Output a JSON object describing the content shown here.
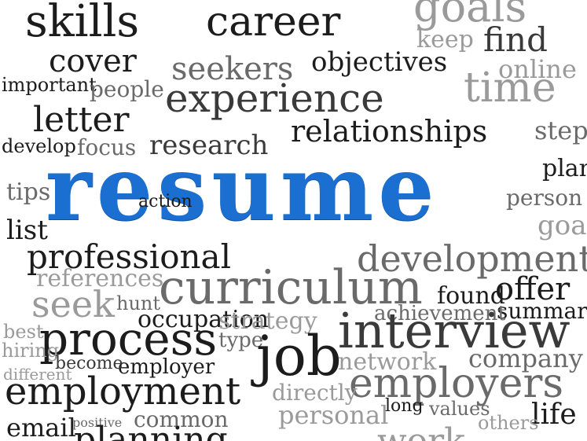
{
  "cloud": {
    "center_word": "resume",
    "center_color": "#1a6fd1",
    "words": [
      "skills",
      "career",
      "cover",
      "goals",
      "find",
      "keep",
      "letter",
      "seekers",
      "objectives",
      "online",
      "experience",
      "time",
      "important",
      "people",
      "relationships",
      "research",
      "focus",
      "develop",
      "step",
      "plan",
      "tips",
      "list",
      "action",
      "person",
      "professional",
      "development",
      "offer",
      "goal",
      "references",
      "curriculum",
      "found",
      "summary",
      "seek",
      "hunt",
      "occupation",
      "strategy",
      "achievement",
      "process",
      "interview",
      "type",
      "job",
      "network",
      "company",
      "employment",
      "employer",
      "employers",
      "directly",
      "best",
      "hiring",
      "become",
      "different",
      "email",
      "positive",
      "common",
      "personal",
      "values",
      "planning",
      "life",
      "work",
      "long",
      "others"
    ]
  }
}
